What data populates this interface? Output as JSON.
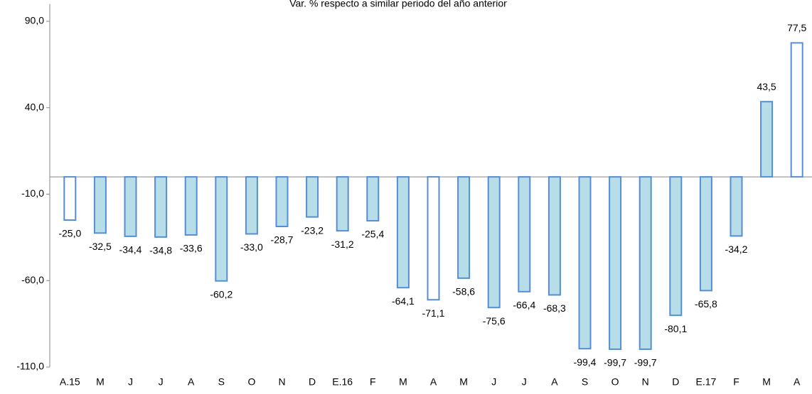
{
  "chart_data": {
    "type": "bar",
    "title": "Var. % respecto a similar periodo del año anterior",
    "categories": [
      "A.15",
      "M",
      "J",
      "J",
      "A",
      "S",
      "O",
      "N",
      "D",
      "E.16",
      "F",
      "M",
      "A",
      "M",
      "J",
      "J",
      "A",
      "S",
      "O",
      "N",
      "D",
      "E.17",
      "F",
      "M",
      "A"
    ],
    "values": [
      -25.0,
      -32.5,
      -34.4,
      -34.8,
      -33.6,
      -60.2,
      -33.0,
      -28.7,
      -23.2,
      -31.2,
      -25.4,
      -64.1,
      -71.1,
      -58.6,
      -75.6,
      -66.4,
      -68.3,
      -99.4,
      -99.7,
      -99.7,
      -80.1,
      -65.8,
      -34.2,
      43.5,
      77.5
    ],
    "value_labels": [
      "-25,0",
      "-32,5",
      "-34,4",
      "-34,8",
      "-33,6",
      "-60,2",
      "-33,0",
      "-28,7",
      "-23,2",
      "-31,2",
      "-25,4",
      "-64,1",
      "-71,1",
      "-58,6",
      "-75,6",
      "-66,4",
      "-68,3",
      "-99,4",
      "-99,7",
      "-99,7",
      "-80,1",
      "-65,8",
      "-34,2",
      "43,5",
      "77,5"
    ],
    "colors": [
      "#ffffff",
      "#b7dee8",
      "#b7dee8",
      "#b7dee8",
      "#b7dee8",
      "#b7dee8",
      "#b7dee8",
      "#b7dee8",
      "#b7dee8",
      "#b7dee8",
      "#b7dee8",
      "#b7dee8",
      "#ffffff",
      "#b7dee8",
      "#b7dee8",
      "#b7dee8",
      "#b7dee8",
      "#b7dee8",
      "#b7dee8",
      "#b7dee8",
      "#b7dee8",
      "#b7dee8",
      "#b7dee8",
      "#b7dee8",
      "#ffffff"
    ],
    "edge_color": "#558ed5",
    "ylim": [
      -110,
      100
    ],
    "yticks": [
      {
        "value": -110,
        "label": "-110,0"
      },
      {
        "value": -60,
        "label": "-60,0"
      },
      {
        "value": -10,
        "label": "-10,0"
      },
      {
        "value": 40,
        "label": "40,0"
      },
      {
        "value": 90,
        "label": "90,0"
      }
    ],
    "grid": false
  }
}
